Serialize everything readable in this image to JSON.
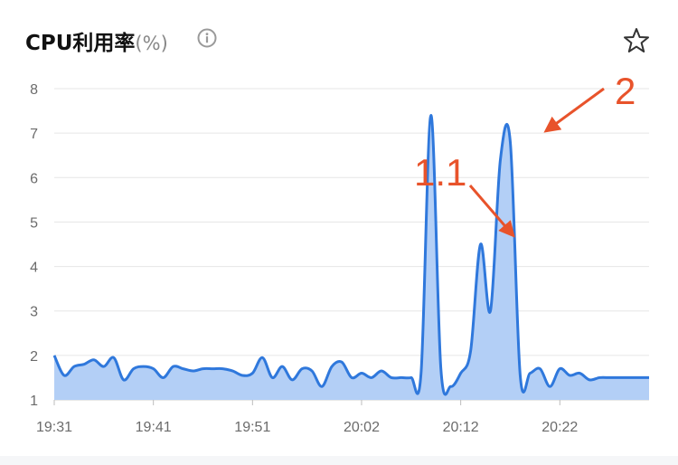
{
  "header": {
    "title": "CPU利用率",
    "unit": "(%)",
    "info_icon": "info-icon",
    "favorite_icon": "star-outline-icon"
  },
  "chart_data": {
    "type": "area",
    "title": "CPU利用率(%)",
    "xlabel": "",
    "ylabel": "",
    "ylim": [
      1,
      8
    ],
    "yticks": [
      "1",
      "2",
      "3",
      "4",
      "5",
      "6",
      "7",
      "8"
    ],
    "xticks": [
      "19:31",
      "19:41",
      "19:51",
      "20:02",
      "20:12",
      "20:22"
    ],
    "grid": true,
    "colors": {
      "line": "#2f78dc",
      "fill": "#b3cff6",
      "grid": "#e6e6e6",
      "annotation": "#e8532b"
    },
    "series": [
      {
        "x": [
          "19:31",
          "19:32",
          "19:33",
          "19:34",
          "19:35",
          "19:36",
          "19:37",
          "19:38",
          "19:39",
          "19:40",
          "19:41",
          "19:42",
          "19:43",
          "19:44",
          "19:45",
          "19:46",
          "19:47",
          "19:48",
          "19:49",
          "19:50",
          "19:51",
          "19:52",
          "19:53",
          "19:54",
          "19:55",
          "19:56",
          "19:57",
          "19:58",
          "19:59",
          "20:00",
          "20:01",
          "20:02",
          "20:03",
          "20:04",
          "20:05",
          "20:06",
          "20:07",
          "20:08",
          "20:09",
          "20:10",
          "20:11",
          "20:12",
          "20:13",
          "20:14",
          "20:15",
          "20:16",
          "20:17",
          "20:18",
          "20:19",
          "20:20",
          "20:21",
          "20:22",
          "20:23",
          "20:24",
          "20:25",
          "20:26",
          "20:27",
          "20:28",
          "20:29",
          "20:30",
          "20:31"
        ],
        "values": [
          2.0,
          1.55,
          1.75,
          1.8,
          1.9,
          1.75,
          1.95,
          1.45,
          1.7,
          1.75,
          1.7,
          1.5,
          1.75,
          1.7,
          1.65,
          1.7,
          1.7,
          1.7,
          1.65,
          1.55,
          1.6,
          1.95,
          1.5,
          1.75,
          1.45,
          1.7,
          1.65,
          1.3,
          1.75,
          1.85,
          1.5,
          1.6,
          1.5,
          1.65,
          1.5,
          1.5,
          1.5,
          1.6,
          7.4,
          1.7,
          1.3,
          1.6,
          2.1,
          4.5,
          3.0,
          6.4,
          6.8,
          1.55,
          1.6,
          1.7,
          1.3,
          1.7,
          1.55,
          1.6,
          1.45,
          1.5,
          1.5,
          1.5,
          1.5,
          1.5,
          1.5
        ]
      }
    ],
    "annotations": [
      {
        "text": "1.1",
        "x": "20:18",
        "y": 4.5
      },
      {
        "text": "2",
        "x": "20:21",
        "y": 6.85
      }
    ]
  }
}
